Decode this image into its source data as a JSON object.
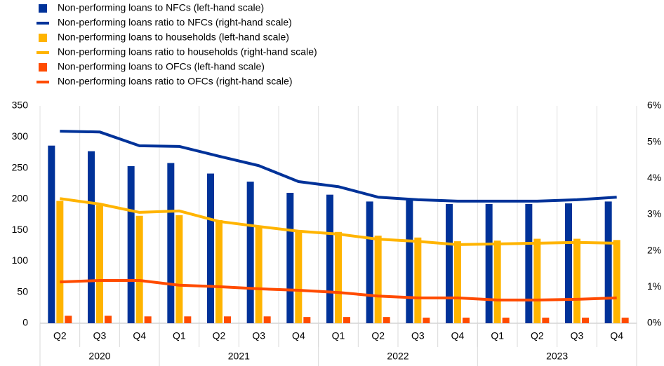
{
  "chart_data": {
    "type": "bar",
    "categories": [
      "Q2",
      "Q3",
      "Q4",
      "Q1",
      "Q2",
      "Q3",
      "Q4",
      "Q1",
      "Q2",
      "Q3",
      "Q4",
      "Q1",
      "Q2",
      "Q3",
      "Q4"
    ],
    "x_groups": [
      {
        "label": "2020",
        "span": 3
      },
      {
        "label": "2021",
        "span": 4
      },
      {
        "label": "2022",
        "span": 4
      },
      {
        "label": "2023",
        "span": 4
      }
    ],
    "series": [
      {
        "name": "Non-performing loans to NFCs (left-hand scale)",
        "type": "bar",
        "color": "#003299",
        "values": [
          286,
          277,
          253,
          258,
          241,
          228,
          210,
          207,
          196,
          198,
          192,
          192,
          192,
          193,
          196
        ]
      },
      {
        "name": "Non-performing loans ratio to NFCs (right-hand scale)",
        "type": "line",
        "axis": "y2",
        "color": "#003299",
        "values": [
          5.3,
          5.28,
          4.9,
          4.88,
          4.61,
          4.35,
          3.91,
          3.77,
          3.48,
          3.41,
          3.37,
          3.37,
          3.37,
          3.41,
          3.48
        ]
      },
      {
        "name": "Non-performing loans to households (left-hand scale)",
        "type": "bar",
        "color": "#ffb400",
        "values": [
          197,
          190,
          173,
          174,
          166,
          157,
          149,
          147,
          141,
          138,
          132,
          133,
          136,
          136,
          134
        ]
      },
      {
        "name": "Non-performing loans ratio to households (right-hand scale)",
        "type": "line",
        "axis": "y2",
        "color": "#ffb400",
        "values": [
          3.44,
          3.29,
          3.06,
          3.1,
          2.81,
          2.67,
          2.54,
          2.46,
          2.32,
          2.26,
          2.17,
          2.19,
          2.21,
          2.23,
          2.21
        ]
      },
      {
        "name": "Non-performing loans to OFCs (left-hand scale)",
        "type": "bar",
        "color": "#ff4b00",
        "values": [
          12,
          12,
          11,
          11,
          11,
          11,
          10,
          10,
          10,
          9,
          9,
          9,
          9,
          9,
          9
        ]
      },
      {
        "name": "Non-performing loans ratio to OFCs (right-hand scale)",
        "type": "line",
        "axis": "y2",
        "color": "#ff4b00",
        "values": [
          1.14,
          1.18,
          1.18,
          1.05,
          1.01,
          0.95,
          0.91,
          0.85,
          0.75,
          0.7,
          0.7,
          0.64,
          0.64,
          0.66,
          0.7
        ]
      }
    ],
    "ylim": [
      0,
      350
    ],
    "yticks": [
      0,
      50,
      100,
      150,
      200,
      250,
      300,
      350
    ],
    "y2lim": [
      0,
      6
    ],
    "y2ticks": [
      {
        "value": 0,
        "label": "0%"
      },
      {
        "value": 1,
        "label": "1%"
      },
      {
        "value": 2,
        "label": "2%"
      },
      {
        "value": 3,
        "label": "3%"
      },
      {
        "value": 4,
        "label": "4%"
      },
      {
        "value": 5,
        "label": "5%"
      },
      {
        "value": 6,
        "label": "6%"
      }
    ],
    "grid": true
  }
}
